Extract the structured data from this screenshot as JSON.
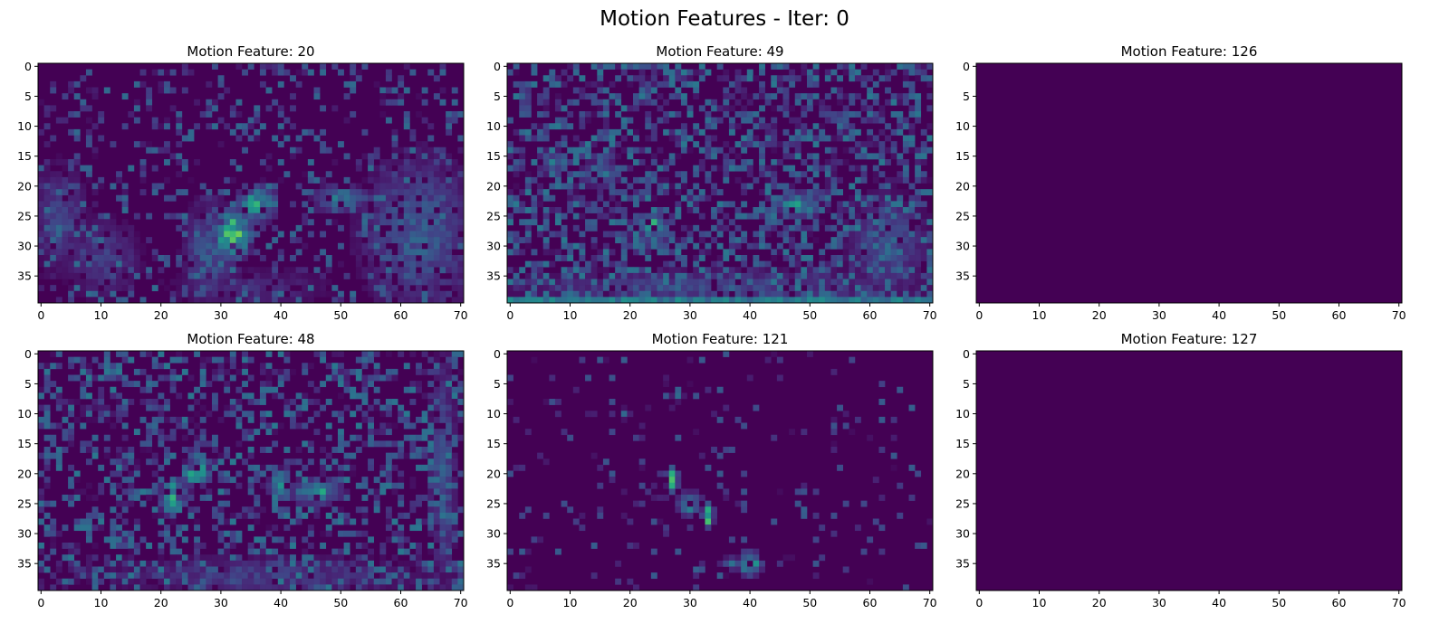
{
  "figure": {
    "suptitle": "Motion Features - Iter: 0"
  },
  "chart_data": [
    {
      "type": "heatmap",
      "title": "Motion Feature: 20",
      "colormap": "viridis",
      "shape": [
        40,
        71
      ],
      "xlim": [
        -0.5,
        70.5
      ],
      "ylim": [
        39.5,
        -0.5
      ],
      "xticks": [
        0,
        10,
        20,
        30,
        40,
        50,
        60,
        70
      ],
      "yticks": [
        0,
        5,
        10,
        15,
        20,
        25,
        30,
        35
      ],
      "grid": false,
      "values_approx": "sparse low activations; bright cluster near x=32,y=28; activity band near y=22 x=50; dense low-mid region x=55-70,y=15-39",
      "blobs": [
        {
          "x": 32,
          "y": 28,
          "rx": 3,
          "ry": 4,
          "v": 0.85
        },
        {
          "x": 36,
          "y": 23,
          "rx": 3,
          "ry": 3,
          "v": 0.6
        },
        {
          "x": 50,
          "y": 22,
          "rx": 4,
          "ry": 2,
          "v": 0.5
        },
        {
          "x": 28,
          "y": 31,
          "rx": 4,
          "ry": 8,
          "v": 0.3
        },
        {
          "x": 63,
          "y": 28,
          "rx": 9,
          "ry": 12,
          "v": 0.32
        },
        {
          "x": 3,
          "y": 25,
          "rx": 4,
          "ry": 8,
          "v": 0.25
        },
        {
          "x": 10,
          "y": 32,
          "rx": 6,
          "ry": 6,
          "v": 0.2
        },
        {
          "x": 35,
          "y": 37,
          "rx": 12,
          "ry": 3,
          "v": 0.15
        }
      ],
      "noise": {
        "density": 0.25,
        "max": 0.35
      }
    },
    {
      "type": "heatmap",
      "title": "Motion Feature: 49",
      "colormap": "viridis",
      "shape": [
        40,
        71
      ],
      "xlim": [
        -0.5,
        70.5
      ],
      "ylim": [
        39.5,
        -0.5
      ],
      "xticks": [
        0,
        10,
        20,
        30,
        40,
        50,
        60,
        70
      ],
      "yticks": [
        0,
        5,
        10,
        15,
        20,
        25,
        30,
        35
      ],
      "grid": false,
      "values_approx": "widespread scattered low-mid activation; bright spot near x=24,y=27; band near y=22 x=45-52; row near y=39 bright",
      "blobs": [
        {
          "x": 24,
          "y": 27,
          "rx": 2,
          "ry": 2,
          "v": 0.8
        },
        {
          "x": 48,
          "y": 23,
          "rx": 4,
          "ry": 2,
          "v": 0.55
        },
        {
          "x": 15,
          "y": 18,
          "rx": 3,
          "ry": 2,
          "v": 0.45
        },
        {
          "x": 7,
          "y": 16,
          "rx": 2,
          "ry": 2,
          "v": 0.4
        },
        {
          "x": 35,
          "y": 37,
          "rx": 30,
          "ry": 3,
          "v": 0.25
        },
        {
          "x": 63,
          "y": 30,
          "rx": 6,
          "ry": 8,
          "v": 0.28
        }
      ],
      "bottom_row": {
        "y": 39,
        "v": 0.5
      },
      "noise": {
        "density": 0.55,
        "max": 0.4
      }
    },
    {
      "type": "heatmap",
      "title": "Motion Feature: 126",
      "colormap": "viridis",
      "shape": [
        40,
        71
      ],
      "xlim": [
        -0.5,
        70.5
      ],
      "ylim": [
        39.5,
        -0.5
      ],
      "xticks": [
        0,
        10,
        20,
        30,
        40,
        50,
        60,
        70
      ],
      "yticks": [
        0,
        5,
        10,
        15,
        20,
        25,
        30,
        35
      ],
      "grid": false,
      "values_approx": "all zero",
      "blobs": [],
      "noise": {
        "density": 0,
        "max": 0
      }
    },
    {
      "type": "heatmap",
      "title": "Motion Feature: 48",
      "colormap": "viridis",
      "shape": [
        40,
        71
      ],
      "xlim": [
        -0.5,
        70.5
      ],
      "ylim": [
        39.5,
        -0.5
      ],
      "xticks": [
        0,
        10,
        20,
        30,
        40,
        50,
        60,
        70
      ],
      "yticks": [
        0,
        5,
        10,
        15,
        20,
        25,
        30,
        35
      ],
      "grid": false,
      "values_approx": "scattered activation; bright cluster near x=22-27,y=19-27; band near y=23 x=42-50",
      "blobs": [
        {
          "x": 26,
          "y": 20,
          "rx": 2,
          "ry": 2,
          "v": 0.85
        },
        {
          "x": 22,
          "y": 24,
          "rx": 2,
          "ry": 3,
          "v": 0.75
        },
        {
          "x": 46,
          "y": 23,
          "rx": 4,
          "ry": 2,
          "v": 0.6
        },
        {
          "x": 40,
          "y": 22,
          "rx": 2,
          "ry": 2,
          "v": 0.45
        },
        {
          "x": 67,
          "y": 20,
          "rx": 2,
          "ry": 18,
          "v": 0.3
        },
        {
          "x": 38,
          "y": 37,
          "rx": 25,
          "ry": 3,
          "v": 0.2
        }
      ],
      "noise": {
        "density": 0.45,
        "max": 0.4
      }
    },
    {
      "type": "heatmap",
      "title": "Motion Feature: 121",
      "colormap": "viridis",
      "shape": [
        40,
        71
      ],
      "xlim": [
        -0.5,
        70.5
      ],
      "ylim": [
        39.5,
        -0.5
      ],
      "xticks": [
        0,
        10,
        20,
        30,
        40,
        50,
        60,
        70
      ],
      "yticks": [
        0,
        5,
        10,
        15,
        20,
        25,
        30,
        35
      ],
      "grid": false,
      "values_approx": "mostly zero; diagonal streak x=24-34,y=20-29 with bright spots; bright blob near x=40,y=35",
      "blobs": [
        {
          "x": 27,
          "y": 21,
          "rx": 1,
          "ry": 2,
          "v": 0.8
        },
        {
          "x": 30,
          "y": 25,
          "rx": 2,
          "ry": 2,
          "v": 0.5
        },
        {
          "x": 33,
          "y": 27,
          "rx": 1,
          "ry": 2,
          "v": 0.85
        },
        {
          "x": 25,
          "y": 23,
          "rx": 2,
          "ry": 1,
          "v": 0.45
        },
        {
          "x": 40,
          "y": 35,
          "rx": 2,
          "ry": 2,
          "v": 0.7
        },
        {
          "x": 37,
          "y": 35,
          "rx": 2,
          "ry": 1,
          "v": 0.35
        },
        {
          "x": 28,
          "y": 7,
          "rx": 1,
          "ry": 1,
          "v": 0.3
        },
        {
          "x": 19,
          "y": 10,
          "rx": 1,
          "ry": 1,
          "v": 0.3
        }
      ],
      "noise": {
        "density": 0.08,
        "max": 0.3
      }
    },
    {
      "type": "heatmap",
      "title": "Motion Feature: 127",
      "colormap": "viridis",
      "shape": [
        40,
        71
      ],
      "xlim": [
        -0.5,
        70.5
      ],
      "ylim": [
        39.5,
        -0.5
      ],
      "xticks": [
        0,
        10,
        20,
        30,
        40,
        50,
        60,
        70
      ],
      "yticks": [
        0,
        5,
        10,
        15,
        20,
        25,
        30,
        35
      ],
      "grid": false,
      "values_approx": "all zero",
      "blobs": [],
      "noise": {
        "density": 0,
        "max": 0
      }
    }
  ]
}
